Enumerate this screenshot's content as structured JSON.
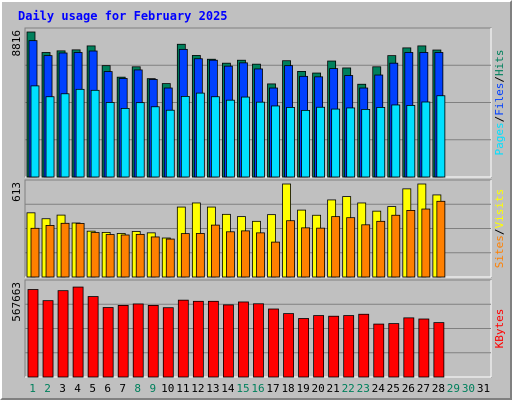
{
  "title": "Daily usage for February 2025",
  "colors": {
    "background": "#c0c0c0",
    "panel": "#c0c0c0",
    "hits": "#00805c",
    "files": "#0040ff",
    "pages": "#00e0ff",
    "visits": "#ffff00",
    "sites": "#ff8000",
    "kbytes": "#ff0000",
    "weekday": "#000000",
    "weekend": "#00805c"
  },
  "chart_data": [
    {
      "type": "bar",
      "panel": "hits-files-pages",
      "ymax_label": "8816",
      "ylim": [
        0,
        8816
      ],
      "legend": [
        "Pages",
        "Files",
        "Hits"
      ],
      "x": [
        1,
        2,
        3,
        4,
        5,
        6,
        7,
        8,
        9,
        10,
        11,
        12,
        13,
        14,
        15,
        16,
        17,
        18,
        19,
        20,
        21,
        22,
        23,
        24,
        25,
        26,
        27,
        28
      ],
      "series": [
        {
          "name": "Hits",
          "values": [
            8816,
            7570,
            7670,
            7730,
            7970,
            6770,
            6070,
            6700,
            5980,
            5680,
            8070,
            7390,
            7160,
            6920,
            7100,
            6860,
            5660,
            7070,
            6420,
            6320,
            7050,
            6630,
            5640,
            6700,
            7380,
            7850,
            7970,
            7720
          ]
        },
        {
          "name": "Files",
          "values": [
            8290,
            7380,
            7540,
            7570,
            7660,
            6410,
            5990,
            6510,
            5930,
            5410,
            7760,
            7190,
            7100,
            6740,
            6940,
            6570,
            5410,
            6770,
            6120,
            6090,
            6590,
            6170,
            5410,
            6200,
            6920,
            7570,
            7570,
            7570
          ]
        },
        {
          "name": "Pages",
          "values": [
            5540,
            4880,
            5060,
            5330,
            5270,
            4530,
            4170,
            4520,
            4270,
            4060,
            4900,
            5100,
            4880,
            4670,
            4860,
            4550,
            4320,
            4230,
            4050,
            4240,
            4130,
            4200,
            4110,
            4230,
            4380,
            4350,
            4560,
            4940
          ]
        }
      ]
    },
    {
      "type": "bar",
      "panel": "visits-sites",
      "ymax_label": "613",
      "ylim": [
        0,
        613
      ],
      "legend": [
        "Sites",
        "Visits"
      ],
      "x": [
        1,
        2,
        3,
        4,
        5,
        6,
        7,
        8,
        9,
        10,
        11,
        12,
        13,
        14,
        15,
        16,
        17,
        18,
        19,
        20,
        21,
        22,
        23,
        24,
        25,
        26,
        27,
        28
      ],
      "series": [
        {
          "name": "Visits",
          "values": [
            423,
            384,
            408,
            356,
            302,
            294,
            287,
            300,
            291,
            257,
            461,
            488,
            461,
            413,
            398,
            367,
            411,
            613,
            441,
            407,
            508,
            530,
            488,
            434,
            464,
            581,
            613,
            541
          ]
        },
        {
          "name": "Sites",
          "values": [
            321,
            340,
            354,
            353,
            293,
            280,
            277,
            281,
            264,
            250,
            286,
            287,
            342,
            298,
            304,
            291,
            230,
            371,
            324,
            322,
            398,
            391,
            344,
            367,
            407,
            439,
            448,
            499
          ]
        }
      ]
    },
    {
      "type": "bar",
      "panel": "kbytes",
      "ymax_label": "567663",
      "ylim": [
        0,
        567663
      ],
      "legend": [
        "KBytes"
      ],
      "x": [
        1,
        2,
        3,
        4,
        5,
        6,
        7,
        8,
        9,
        10,
        11,
        12,
        13,
        14,
        15,
        16,
        17,
        18,
        19,
        20,
        21,
        22,
        23,
        24,
        25,
        26,
        27,
        28
      ],
      "series": [
        {
          "name": "KBytes",
          "values": [
            534000,
            466000,
            527000,
            549000,
            491000,
            424000,
            437000,
            446000,
            437000,
            423000,
            469000,
            462000,
            462000,
            440000,
            458000,
            447000,
            415000,
            387000,
            357000,
            375000,
            371000,
            375000,
            383000,
            323000,
            326000,
            361000,
            354000,
            332000
          ]
        }
      ]
    }
  ],
  "days": [
    {
      "label": "1",
      "weekend": true
    },
    {
      "label": "2",
      "weekend": true
    },
    {
      "label": "3",
      "weekend": false
    },
    {
      "label": "4",
      "weekend": false
    },
    {
      "label": "5",
      "weekend": false
    },
    {
      "label": "6",
      "weekend": false
    },
    {
      "label": "7",
      "weekend": false
    },
    {
      "label": "8",
      "weekend": true
    },
    {
      "label": "9",
      "weekend": true
    },
    {
      "label": "10",
      "weekend": false
    },
    {
      "label": "11",
      "weekend": false
    },
    {
      "label": "12",
      "weekend": false
    },
    {
      "label": "13",
      "weekend": false
    },
    {
      "label": "14",
      "weekend": false
    },
    {
      "label": "15",
      "weekend": true
    },
    {
      "label": "16",
      "weekend": true
    },
    {
      "label": "17",
      "weekend": false
    },
    {
      "label": "18",
      "weekend": false
    },
    {
      "label": "19",
      "weekend": false
    },
    {
      "label": "20",
      "weekend": false
    },
    {
      "label": "21",
      "weekend": false
    },
    {
      "label": "22",
      "weekend": true
    },
    {
      "label": "23",
      "weekend": true
    },
    {
      "label": "24",
      "weekend": false
    },
    {
      "label": "25",
      "weekend": false
    },
    {
      "label": "26",
      "weekend": false
    },
    {
      "label": "27",
      "weekend": false
    },
    {
      "label": "28",
      "weekend": false
    },
    {
      "label": "29",
      "weekend": true
    },
    {
      "label": "30",
      "weekend": true
    },
    {
      "label": "31",
      "weekend": false
    }
  ]
}
